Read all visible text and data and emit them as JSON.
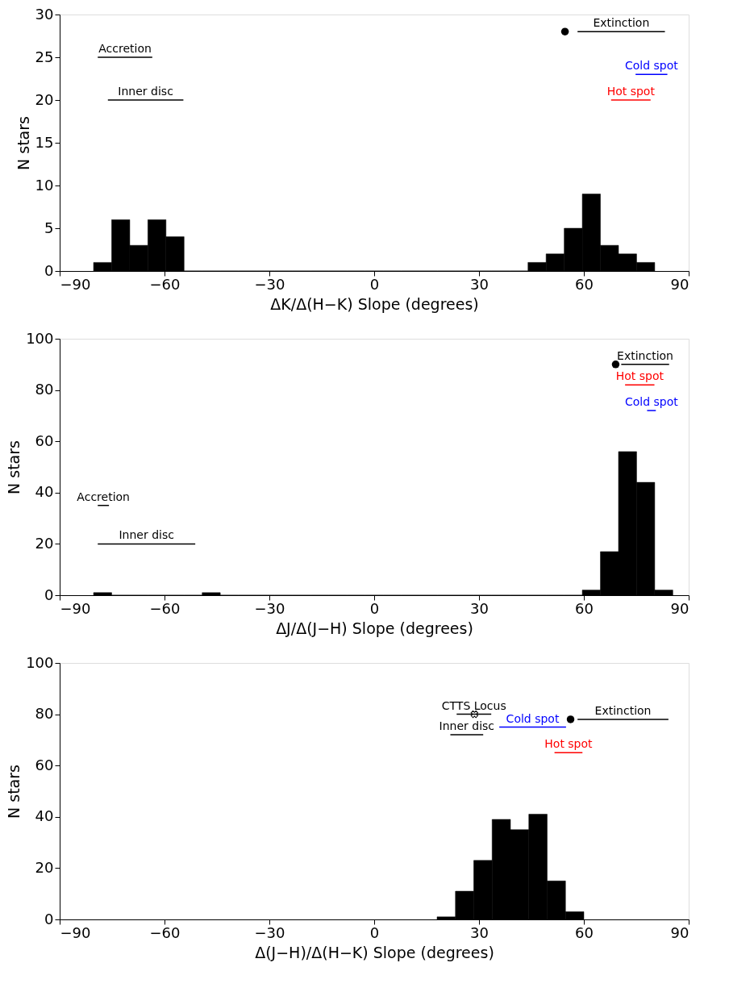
{
  "chart_data": [
    {
      "type": "histogram",
      "color": "#000000",
      "xlabel": "ΔK/Δ(H−K) Slope (degrees)",
      "ylabel": "N stars",
      "xlim": [
        -90,
        90
      ],
      "xticks": [
        {
          "value": -90,
          "label": "−90"
        },
        {
          "value": -60,
          "label": "−60"
        },
        {
          "value": -30,
          "label": "−30"
        },
        0,
        30,
        60,
        90
      ],
      "ylim": [
        0,
        30
      ],
      "yticks": [
        0,
        5,
        10,
        15,
        20,
        25,
        30
      ],
      "grid": false,
      "bins": [
        -80.3,
        -75.12,
        -69.94,
        -64.76,
        -59.58,
        -54.4,
        -49.22,
        -44.04,
        -38.86,
        -33.68,
        -28.5,
        -23.32,
        -18.14,
        -12.96,
        -7.78,
        -2.6,
        2.58,
        7.76,
        12.94,
        18.12,
        23.3,
        28.48,
        33.66,
        38.84,
        44.02,
        49.2,
        54.38,
        59.56,
        64.74,
        69.92,
        75.1,
        80.28
      ],
      "values": [
        1,
        6,
        3,
        6,
        4,
        0,
        0,
        0,
        0,
        0,
        0,
        0,
        0,
        0,
        0,
        0,
        0,
        0,
        0,
        0,
        0,
        0,
        0,
        0,
        1,
        2,
        5,
        9,
        3,
        2,
        1
      ],
      "series": [
        {
          "type": "line",
          "name": "Accretion",
          "color": "#000000",
          "x": [
            -79.1,
            -63.5
          ],
          "values": [
            25,
            25
          ]
        },
        {
          "type": "line",
          "name": "Inner disc",
          "color": "#000000",
          "x": [
            -76.2,
            -54.6
          ],
          "values": [
            20,
            20
          ]
        },
        {
          "type": "line",
          "name": "Extinction",
          "color": "#000000",
          "x": [
            58.2,
            83.2
          ],
          "values": [
            28,
            28
          ]
        },
        {
          "type": "line",
          "name": "Cold spot",
          "color": "#0000ff",
          "x": [
            74.8,
            83.9
          ],
          "values": [
            23,
            23
          ]
        },
        {
          "type": "line",
          "name": "Hot spot",
          "color": "#ff0000",
          "x": [
            67.8,
            79.1
          ],
          "values": [
            20,
            20
          ]
        },
        {
          "type": "scatter",
          "marker": "circle",
          "color": "#000000",
          "x": [
            54.6
          ],
          "values": [
            28
          ]
        }
      ]
    },
    {
      "type": "histogram",
      "color": "#000000",
      "xlabel": "ΔJ/Δ(J−H) Slope (degrees)",
      "ylabel": "N stars",
      "xlim": [
        -90,
        90
      ],
      "xticks": [
        {
          "value": -90,
          "label": "−90"
        },
        {
          "value": -60,
          "label": "−60"
        },
        {
          "value": -30,
          "label": "−30"
        },
        0,
        30,
        60,
        90
      ],
      "ylim": [
        0,
        100
      ],
      "yticks": [
        0,
        20,
        40,
        60,
        80,
        100
      ],
      "grid": false,
      "bins": [
        -80.3,
        -75.12,
        -69.94,
        -64.76,
        -59.58,
        -54.4,
        -49.22,
        -44.04,
        -38.86,
        -33.68,
        -28.5,
        -23.32,
        -18.14,
        -12.96,
        -7.78,
        -2.6,
        2.58,
        7.76,
        12.94,
        18.12,
        23.3,
        28.48,
        33.66,
        38.84,
        44.02,
        49.2,
        54.38,
        59.56,
        64.74,
        69.92,
        75.1,
        80.28,
        85.46
      ],
      "values": [
        1,
        0,
        0,
        0,
        0,
        0,
        1,
        0,
        0,
        0,
        0,
        0,
        0,
        0,
        0,
        0,
        0,
        0,
        0,
        0,
        0,
        0,
        0,
        0,
        0,
        0,
        0,
        2,
        17,
        56,
        44,
        2
      ],
      "series": [
        {
          "type": "line",
          "name": "Accretion",
          "color": "#000000",
          "x": [
            -79.1,
            -75.9
          ],
          "values": [
            35,
            35
          ]
        },
        {
          "type": "line",
          "name": "Inner disc",
          "color": "#000000",
          "x": [
            -79.1,
            -51.2
          ],
          "values": [
            20,
            20
          ]
        },
        {
          "type": "line",
          "name": "Extinction",
          "color": "#000000",
          "x": [
            70.7,
            84.4
          ],
          "values": [
            90,
            90
          ]
        },
        {
          "type": "line",
          "name": "Hot spot",
          "color": "#ff0000",
          "x": [
            71.8,
            80.2
          ],
          "values": [
            82,
            82
          ]
        },
        {
          "type": "line",
          "name": "Cold spot",
          "color": "#0000ff",
          "x": [
            78.1,
            80.6
          ],
          "values": [
            72,
            72
          ]
        },
        {
          "type": "scatter",
          "marker": "circle",
          "color": "#000000",
          "x": [
            69.1
          ],
          "values": [
            90
          ]
        }
      ]
    },
    {
      "type": "histogram",
      "color": "#000000",
      "xlabel": "Δ(J−H)/Δ(H−K) Slope (degrees)",
      "ylabel": "N stars",
      "xlim": [
        -90,
        90
      ],
      "xticks": [
        {
          "value": -90,
          "label": "−90"
        },
        {
          "value": -60,
          "label": "−60"
        },
        {
          "value": -30,
          "label": "−30"
        },
        0,
        30,
        60,
        90
      ],
      "ylim": [
        0,
        100
      ],
      "yticks": [
        0,
        20,
        40,
        60,
        80,
        100
      ],
      "grid": false,
      "bins": [
        18.0,
        23.25,
        28.5,
        33.75,
        39.0,
        44.25,
        49.5,
        54.75,
        60.0
      ],
      "values": [
        1,
        11,
        23,
        39,
        35,
        41,
        15,
        3
      ],
      "series": [
        {
          "type": "line",
          "name": "CTTS Locus",
          "color": "#000000",
          "x": [
            23.6,
            33.5
          ],
          "values": [
            80,
            80
          ]
        },
        {
          "type": "line",
          "name": "Inner disc",
          "color": "#000000",
          "x": [
            21.8,
            31.2
          ],
          "values": [
            72,
            72
          ]
        },
        {
          "type": "line",
          "name": "Cold spot",
          "color": "#0000ff",
          "x": [
            35.8,
            54.9
          ],
          "values": [
            75,
            75
          ]
        },
        {
          "type": "line",
          "name": "Extinction",
          "color": "#000000",
          "x": [
            58.2,
            84.2
          ],
          "values": [
            78,
            78
          ]
        },
        {
          "type": "line",
          "name": "Hot spot",
          "color": "#ff0000",
          "x": [
            51.6,
            59.6
          ],
          "values": [
            65,
            65
          ]
        },
        {
          "type": "scatter",
          "marker": "circle",
          "color": "#000000",
          "x": [
            56.2
          ],
          "values": [
            78
          ]
        },
        {
          "type": "scatter",
          "marker": "cross",
          "color": "#000000",
          "x": [
            28.7
          ],
          "values": [
            80
          ]
        }
      ]
    }
  ]
}
